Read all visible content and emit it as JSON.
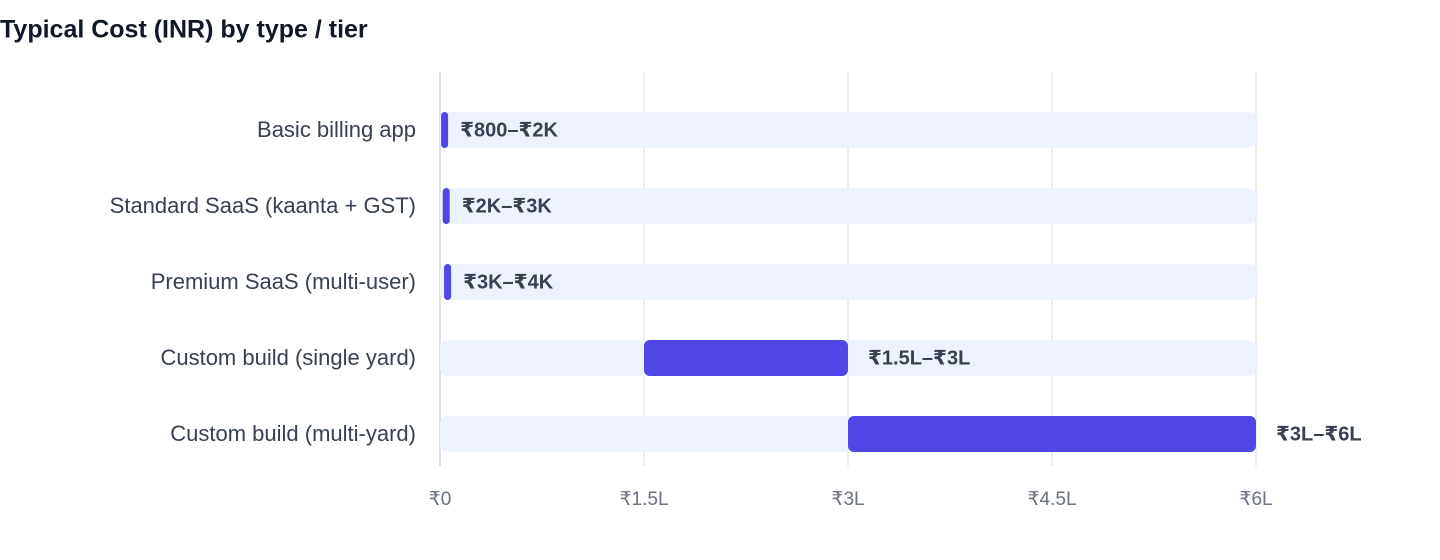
{
  "chart_data": {
    "type": "range-bar",
    "title": "Typical Cost (INR) by type / tier",
    "categories": [
      "Basic billing app",
      "Standard SaaS (kaanta + GST)",
      "Premium SaaS (multi-user)",
      "Custom build (single yard)",
      "Custom build (multi-yard)"
    ],
    "values": [
      [
        800,
        2000
      ],
      [
        2000,
        3000
      ],
      [
        3000,
        4000
      ],
      [
        150000,
        300000
      ],
      [
        300000,
        600000
      ]
    ],
    "value_labels": [
      "₹800–₹2K",
      "₹2K–₹3K",
      "₹3K–₹4K",
      "₹1.5L–₹3L",
      "₹3L–₹6L"
    ],
    "color": "#4f46e5",
    "track_color": "#eef2ff",
    "xlim": [
      0,
      600000
    ],
    "xticks": [
      {
        "value": 0,
        "label": "₹0"
      },
      {
        "value": 150000,
        "label": "₹1.5L"
      },
      {
        "value": 300000,
        "label": "₹3L"
      },
      {
        "value": 450000,
        "label": "₹4.5L"
      },
      {
        "value": 600000,
        "label": "₹6L"
      }
    ],
    "grid": true
  }
}
